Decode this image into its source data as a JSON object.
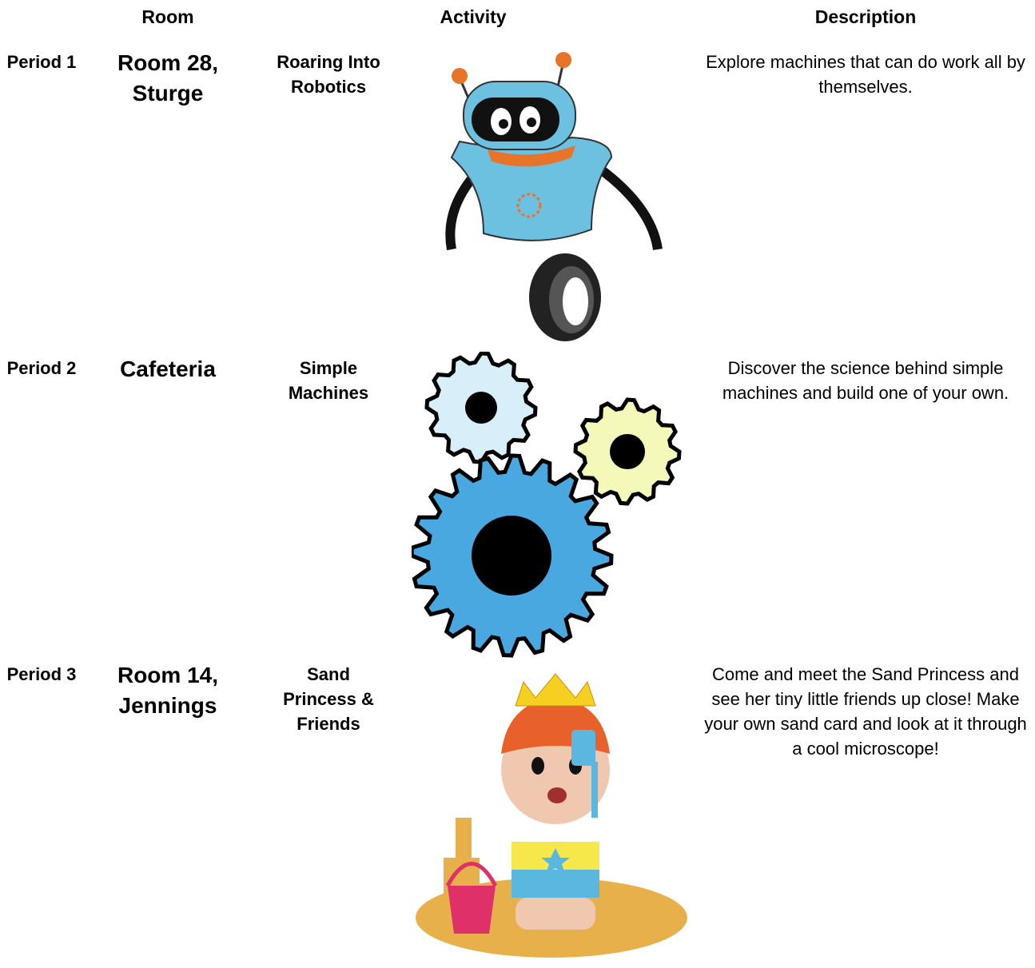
{
  "header": {
    "room": "Room",
    "activity": "Activity",
    "description": "Description"
  },
  "rows": [
    {
      "period": "Period 1",
      "room": "Room 28, Sturge",
      "activity": "Roaring Into Robotics",
      "description": "Explore machines that can do work all by themselves."
    },
    {
      "period": "Period 2",
      "room": "Cafeteria",
      "activity": "Simple Machines",
      "description": "Discover the science behind simple machines and build one of your own."
    },
    {
      "period": "Period 3",
      "room": "Room 14, Jennings",
      "activity": "Sand Princess & Friends",
      "description": "Come and meet the Sand Princess and see her tiny little friends up close! Make your own sand card and look at it through a cool microscope!"
    }
  ]
}
